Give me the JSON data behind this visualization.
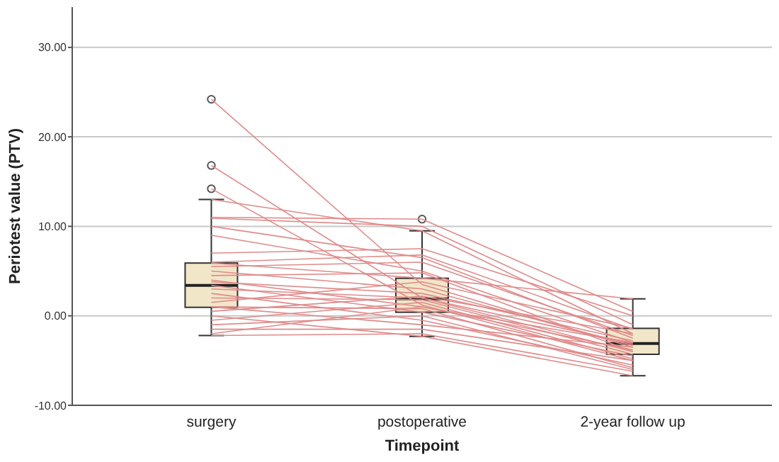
{
  "chart_data": {
    "type": "box",
    "xlabel": "Timepoint",
    "ylabel": "Periotest value (PTV)",
    "categories": [
      "surgery",
      "postoperative",
      "2-year follow up"
    ],
    "boxes": [
      {
        "low": -2.2,
        "q1": 0.95,
        "median": 3.4,
        "q3": 5.9,
        "high": 13.0,
        "outliers": [
          24.2,
          16.8,
          14.2
        ]
      },
      {
        "low": -2.3,
        "q1": 0.4,
        "median": 1.9,
        "q3": 4.2,
        "high": 9.5,
        "outliers": [
          10.8
        ]
      },
      {
        "low": -6.7,
        "q1": -4.3,
        "median": -3.1,
        "q3": -1.4,
        "high": 1.9
      }
    ],
    "color": "#f1e6c8",
    "series": [
      {
        "type": "line",
        "color": "#e08a8a",
        "values": [
          24.2,
          3.5,
          -3.5
        ]
      },
      {
        "type": "line",
        "color": "#e08a8a",
        "values": [
          16.8,
          2.0,
          -4.0
        ]
      },
      {
        "type": "line",
        "color": "#e08a8a",
        "values": [
          14.2,
          1.2,
          -5.0
        ]
      },
      {
        "type": "line",
        "color": "#e08a8a",
        "values": [
          13.0,
          9.5,
          -2.0
        ]
      },
      {
        "type": "line",
        "color": "#e08a8a",
        "values": [
          11.0,
          10.8,
          0.5
        ]
      },
      {
        "type": "line",
        "color": "#e08a8a",
        "values": [
          10.9,
          10.0,
          -1.0
        ]
      },
      {
        "type": "line",
        "color": "#e08a8a",
        "values": [
          10.0,
          6.5,
          -2.5
        ]
      },
      {
        "type": "line",
        "color": "#e08a8a",
        "values": [
          9.0,
          5.0,
          -3.0
        ]
      },
      {
        "type": "line",
        "color": "#e08a8a",
        "values": [
          7.0,
          7.5,
          0.0
        ]
      },
      {
        "type": "line",
        "color": "#e08a8a",
        "values": [
          6.0,
          6.8,
          -1.5
        ]
      },
      {
        "type": "line",
        "color": "#e08a8a",
        "values": [
          5.9,
          4.2,
          1.9
        ]
      },
      {
        "type": "line",
        "color": "#e08a8a",
        "values": [
          5.5,
          6.0,
          -2.2
        ]
      },
      {
        "type": "line",
        "color": "#e08a8a",
        "values": [
          5.0,
          3.0,
          -3.3
        ]
      },
      {
        "type": "line",
        "color": "#e08a8a",
        "values": [
          4.5,
          4.8,
          -4.0
        ]
      },
      {
        "type": "line",
        "color": "#e08a8a",
        "values": [
          4.0,
          1.0,
          -3.8
        ]
      },
      {
        "type": "line",
        "color": "#e08a8a",
        "values": [
          3.8,
          2.5,
          -2.8
        ]
      },
      {
        "type": "line",
        "color": "#e08a8a",
        "values": [
          3.4,
          0.4,
          -4.5
        ]
      },
      {
        "type": "line",
        "color": "#e08a8a",
        "values": [
          3.0,
          2.0,
          -3.1
        ]
      },
      {
        "type": "line",
        "color": "#e08a8a",
        "values": [
          2.5,
          -0.5,
          -5.5
        ]
      },
      {
        "type": "line",
        "color": "#e08a8a",
        "values": [
          2.0,
          1.8,
          -4.3
        ]
      },
      {
        "type": "line",
        "color": "#e08a8a",
        "values": [
          1.5,
          3.8,
          -1.4
        ]
      },
      {
        "type": "line",
        "color": "#e08a8a",
        "values": [
          1.0,
          0.8,
          -5.8
        ]
      },
      {
        "type": "line",
        "color": "#e08a8a",
        "values": [
          1.0,
          -1.0,
          -3.5
        ]
      },
      {
        "type": "line",
        "color": "#e08a8a",
        "values": [
          0.5,
          2.2,
          -2.0
        ]
      },
      {
        "type": "line",
        "color": "#e08a8a",
        "values": [
          0.0,
          -2.3,
          -6.7
        ]
      },
      {
        "type": "line",
        "color": "#e08a8a",
        "values": [
          -0.5,
          1.5,
          -4.8
        ]
      },
      {
        "type": "line",
        "color": "#e08a8a",
        "values": [
          -1.0,
          0.0,
          -6.0
        ]
      },
      {
        "type": "line",
        "color": "#e08a8a",
        "values": [
          -1.5,
          -1.5,
          -5.0
        ]
      },
      {
        "type": "line",
        "color": "#e08a8a",
        "values": [
          -2.2,
          -2.0,
          -6.2
        ]
      },
      {
        "type": "line",
        "color": "#e08a8a",
        "values": [
          -2.0,
          1.0,
          -3.0
        ]
      }
    ],
    "marker": "none",
    "grid": "y",
    "ylim": [
      -10,
      34.5
    ],
    "yticks": [
      {
        "value": -10,
        "label": "-10.00"
      },
      {
        "value": 0,
        "label": "0.00"
      },
      {
        "value": 10,
        "label": "10.00"
      },
      {
        "value": 20,
        "label": "20.00"
      },
      {
        "value": 30,
        "label": "30.00"
      }
    ]
  }
}
